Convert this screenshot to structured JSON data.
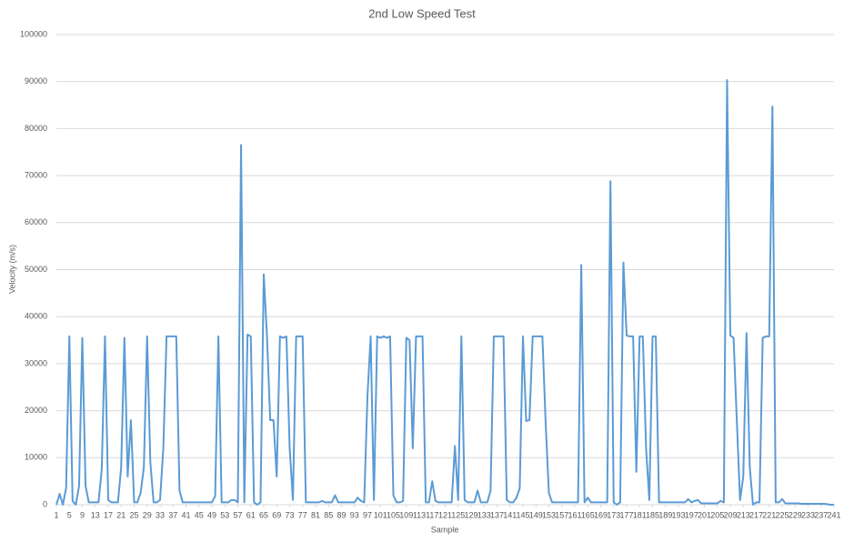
{
  "chart_data": {
    "type": "line",
    "title": "2nd Low Speed Test",
    "x_label": "Sample",
    "y_label": "Velocity (m/s)",
    "color": "#5b9bd5",
    "grid": true,
    "xlim": [
      1,
      241
    ],
    "xticks": [
      1,
      5,
      9,
      13,
      17,
      21,
      25,
      29,
      33,
      37,
      41,
      45,
      49,
      53,
      57,
      61,
      65,
      69,
      73,
      77,
      81,
      85,
      89,
      93,
      97,
      101,
      105,
      109,
      113,
      117,
      121,
      125,
      129,
      133,
      137,
      141,
      145,
      149,
      153,
      157,
      161,
      165,
      169,
      173,
      177,
      181,
      185,
      189,
      193,
      197,
      201,
      205,
      209,
      213,
      217,
      221,
      225,
      229,
      233,
      237,
      241
    ],
    "ylim": [
      0,
      100000
    ],
    "yticks": [
      0,
      10000,
      20000,
      30000,
      40000,
      50000,
      60000,
      70000,
      80000,
      90000,
      100000
    ],
    "x": [
      1,
      2,
      3,
      4,
      5,
      6,
      7,
      8,
      9,
      10,
      11,
      12,
      13,
      14,
      15,
      16,
      17,
      18,
      19,
      20,
      21,
      22,
      23,
      24,
      25,
      26,
      27,
      28,
      29,
      30,
      31,
      32,
      33,
      34,
      35,
      36,
      37,
      38,
      39,
      40,
      41,
      42,
      43,
      44,
      45,
      46,
      47,
      48,
      49,
      50,
      51,
      52,
      53,
      54,
      55,
      56,
      57,
      58,
      59,
      60,
      61,
      62,
      63,
      64,
      65,
      66,
      67,
      68,
      69,
      70,
      71,
      72,
      73,
      74,
      75,
      76,
      77,
      78,
      79,
      80,
      81,
      82,
      83,
      84,
      85,
      86,
      87,
      88,
      89,
      90,
      91,
      92,
      93,
      94,
      95,
      96,
      97,
      98,
      99,
      100,
      101,
      102,
      103,
      104,
      105,
      106,
      107,
      108,
      109,
      110,
      111,
      112,
      113,
      114,
      115,
      116,
      117,
      118,
      119,
      120,
      121,
      122,
      123,
      124,
      125,
      126,
      127,
      128,
      129,
      130,
      131,
      132,
      133,
      134,
      135,
      136,
      137,
      138,
      139,
      140,
      141,
      142,
      143,
      144,
      145,
      146,
      147,
      148,
      149,
      150,
      151,
      152,
      153,
      154,
      155,
      156,
      157,
      158,
      159,
      160,
      161,
      162,
      163,
      164,
      165,
      166,
      167,
      168,
      169,
      170,
      171,
      172,
      173,
      174,
      175,
      176,
      177,
      178,
      179,
      180,
      181,
      182,
      183,
      184,
      185,
      186,
      187,
      188,
      189,
      190,
      191,
      192,
      193,
      194,
      195,
      196,
      197,
      198,
      199,
      200,
      201,
      202,
      203,
      204,
      205,
      206,
      207,
      208,
      209,
      210,
      211,
      212,
      213,
      214,
      215,
      216,
      217,
      218,
      219,
      220,
      221,
      222,
      223,
      224,
      225,
      226,
      227,
      228,
      229,
      230,
      231,
      232,
      233,
      234,
      235,
      236,
      237,
      238,
      239,
      240,
      241
    ],
    "values": [
      0,
      2300,
      0,
      3500,
      35800,
      800,
      0,
      4000,
      35500,
      4000,
      500,
      500,
      500,
      500,
      7500,
      35800,
      1000,
      500,
      500,
      500,
      8000,
      35500,
      6000,
      18000,
      500,
      500,
      2500,
      8000,
      35800,
      9000,
      500,
      500,
      1000,
      12000,
      35800,
      35800,
      35800,
      35800,
      3000,
      500,
      500,
      500,
      500,
      500,
      500,
      500,
      500,
      500,
      500,
      1800,
      35800,
      500,
      500,
      500,
      1000,
      1000,
      500,
      76500,
      500,
      36200,
      35800,
      500,
      0,
      500,
      49000,
      35800,
      18000,
      18000,
      6000,
      35800,
      35500,
      35800,
      12000,
      1000,
      35800,
      35800,
      35800,
      500,
      500,
      500,
      500,
      500,
      800,
      500,
      500,
      500,
      2000,
      500,
      500,
      500,
      500,
      500,
      500,
      1500,
      800,
      500,
      23000,
      35800,
      1000,
      35800,
      35500,
      35800,
      35500,
      35800,
      2000,
      500,
      500,
      800,
      35500,
      35000,
      12000,
      35800,
      35800,
      35800,
      500,
      500,
      5000,
      800,
      500,
      500,
      500,
      500,
      500,
      12500,
      1000,
      35800,
      1000,
      500,
      500,
      500,
      3000,
      500,
      500,
      500,
      3000,
      35800,
      35800,
      35800,
      35800,
      1000,
      500,
      500,
      1500,
      3500,
      35800,
      17800,
      18000,
      35800,
      35800,
      35800,
      35800,
      17500,
      2500,
      500,
      500,
      500,
      500,
      500,
      500,
      500,
      500,
      500,
      51000,
      500,
      1500,
      500,
      500,
      500,
      500,
      500,
      500,
      68800,
      500,
      0,
      500,
      51500,
      36000,
      35800,
      35800,
      7000,
      35800,
      35800,
      12000,
      1000,
      35800,
      35800,
      500,
      500,
      500,
      500,
      500,
      500,
      500,
      500,
      500,
      1200,
      500,
      800,
      1000,
      300,
      300,
      300,
      300,
      300,
      300,
      800,
      500,
      90300,
      36000,
      35500,
      18000,
      1000,
      6000,
      36500,
      8000,
      0,
      500,
      500,
      35500,
      35800,
      35800,
      84700,
      500,
      500,
      1200,
      300,
      300,
      300,
      300,
      300,
      200,
      200,
      200,
      200,
      200,
      200,
      200,
      200,
      100,
      0,
      0
    ]
  }
}
